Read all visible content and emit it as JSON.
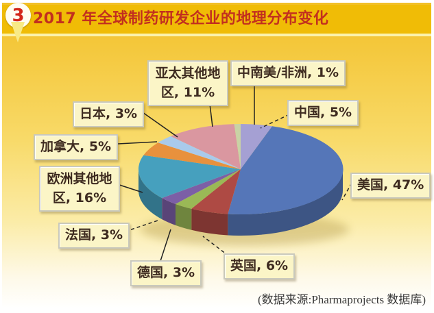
{
  "header": {
    "badge": "3",
    "title": "2017 年全球制药研发企业的地理分布变化"
  },
  "source_note": "(数据来源:Pharmaprojects 数据库)",
  "colors": {
    "header_gold": "#F0BC06",
    "title_red": "#C22F1F",
    "label_box_bg": "#FBF5C7",
    "label_text": "#3E2B20",
    "background_top": "#F2C028",
    "background_bottom": "#FFFFFE"
  },
  "chart_data": {
    "type": "pie",
    "style": "3d",
    "title": "2017 年全球制药研发企业的地理分布变化",
    "unit": "%",
    "start_angle_deg": 0,
    "direction": "clockwise",
    "legend_position": "none",
    "slices": [
      {
        "name": "中国",
        "value": 5,
        "label": "中国, 5%",
        "color": "#A5A0D3"
      },
      {
        "name": "美国",
        "value": 47,
        "label": "美国, 47%",
        "color": "#5576B8"
      },
      {
        "name": "英国",
        "value": 6,
        "label": "英国, 6%",
        "color": "#AE4A44"
      },
      {
        "name": "德国",
        "value": 3,
        "label": "德国, 3%",
        "color": "#9AB956"
      },
      {
        "name": "法国",
        "value": 3,
        "label": "法国, 3%",
        "color": "#7C5FA6"
      },
      {
        "name": "欧洲其他地区",
        "value": 16,
        "label": "欧洲其他地区, 16%",
        "color": "#46A0BE"
      },
      {
        "name": "加拿大",
        "value": 5,
        "label": "加拿大, 5%",
        "color": "#E8913D"
      },
      {
        "name": "日本",
        "value": 3,
        "label": "日本, 3%",
        "color": "#A9CAEB"
      },
      {
        "name": "亚太其他地区",
        "value": 11,
        "label": "亚太其他地区, 11%",
        "color": "#DA97A0"
      },
      {
        "name": "中南美/非洲",
        "value": 1,
        "label": "中南美/非洲, 1%",
        "color": "#C9D2A5"
      }
    ]
  }
}
